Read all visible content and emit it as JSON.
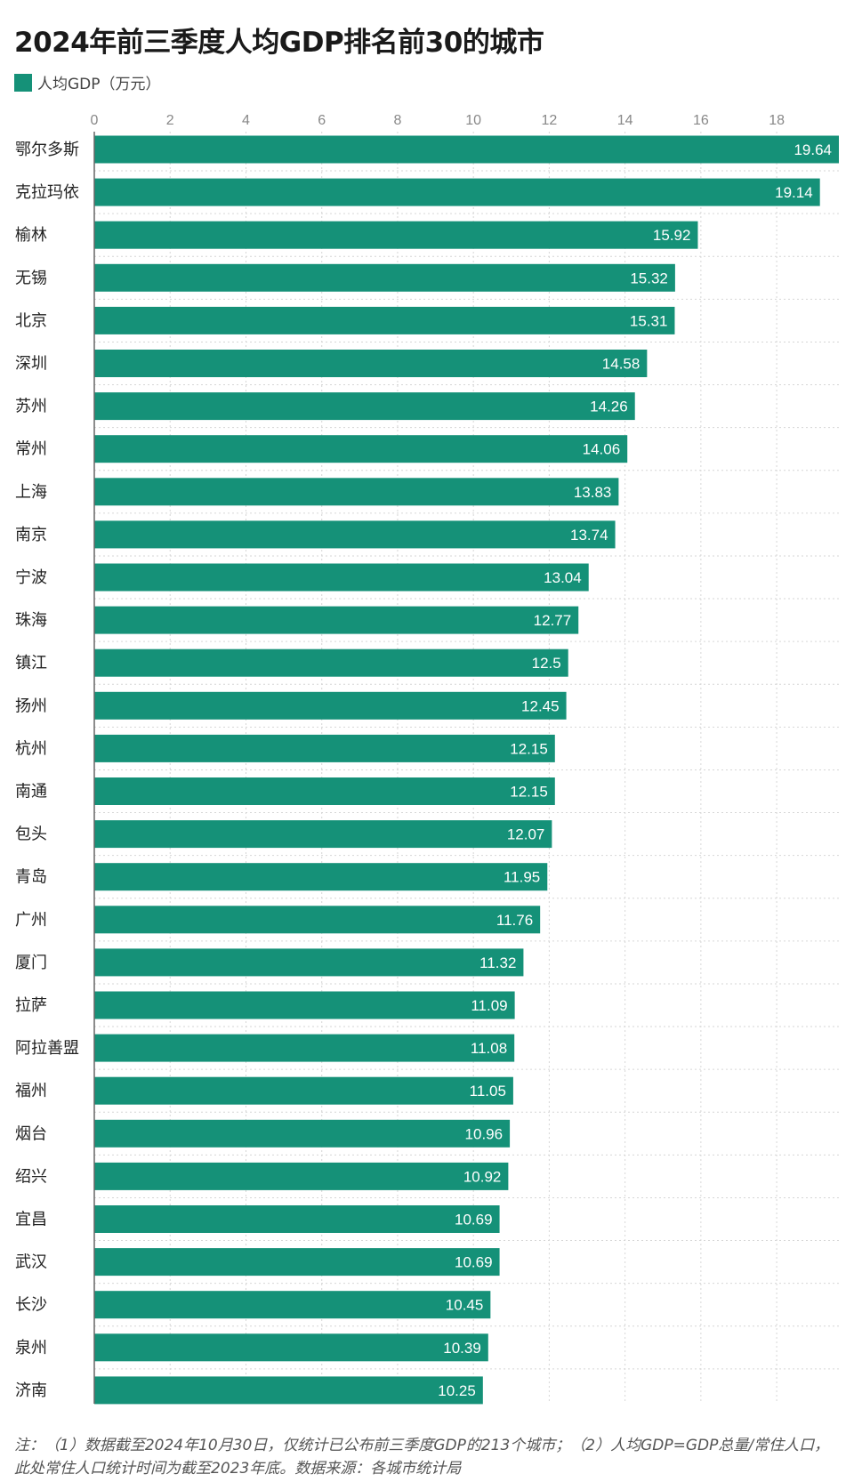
{
  "title": "2024年前三季度人均GDP排名前30的城市",
  "legend": {
    "label": "人均GDP（万元）",
    "color": "#159178"
  },
  "footnote": "注：（1）数据截至2024年10月30日，仅统计已公布前三季度GDP的213个城市；（2）人均GDP=GDP总量/常住人口，此处常住人口统计时间为截至2023年底。数据来源：各城市统计局",
  "chart_data": {
    "type": "bar",
    "orientation": "horizontal",
    "categories": [
      "鄂尔多斯",
      "克拉玛依",
      "榆林",
      "无锡",
      "北京",
      "深圳",
      "苏州",
      "常州",
      "上海",
      "南京",
      "宁波",
      "珠海",
      "镇江",
      "扬州",
      "杭州",
      "南通",
      "包头",
      "青岛",
      "广州",
      "厦门",
      "拉萨",
      "阿拉善盟",
      "福州",
      "烟台",
      "绍兴",
      "宜昌",
      "武汉",
      "长沙",
      "泉州",
      "济南"
    ],
    "series": [
      {
        "name": "人均GDP（万元）",
        "values": [
          19.64,
          19.14,
          15.92,
          15.32,
          15.31,
          14.58,
          14.26,
          14.06,
          13.83,
          13.74,
          13.04,
          12.77,
          12.5,
          12.45,
          12.15,
          12.15,
          12.07,
          11.95,
          11.76,
          11.32,
          11.09,
          11.08,
          11.05,
          10.96,
          10.92,
          10.69,
          10.69,
          10.45,
          10.39,
          10.25
        ],
        "value_labels": [
          "19.64",
          "19.14",
          "15.92",
          "15.32",
          "15.31",
          "14.58",
          "14.26",
          "14.06",
          "13.83",
          "13.74",
          "13.04",
          "12.77",
          "12.5",
          "12.45",
          "12.15",
          "12.15",
          "12.07",
          "11.95",
          "11.76",
          "11.32",
          "11.09",
          "11.08",
          "11.05",
          "10.96",
          "10.92",
          "10.69",
          "10.69",
          "10.45",
          "10.39",
          "10.25"
        ]
      }
    ],
    "xlim": [
      0,
      19.64
    ],
    "xticks": [
      "0",
      "2",
      "4",
      "6",
      "8",
      "10",
      "12",
      "14",
      "16",
      "18"
    ],
    "tick_values": [
      0,
      2,
      4,
      6,
      8,
      10,
      12,
      14,
      16,
      18
    ],
    "axis_position": "top",
    "grid": true,
    "legend_position": "top-left",
    "colors": {
      "bar": "#159178",
      "grid": "#d6d6d6",
      "axis": "#666666",
      "tick_text": "#888888",
      "value_text": "#ffffff"
    }
  }
}
